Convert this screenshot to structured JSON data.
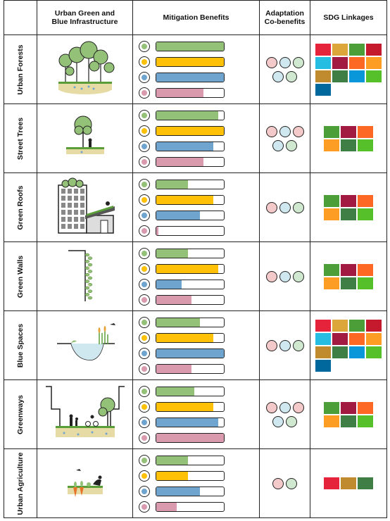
{
  "headers": {
    "row_label": "",
    "infrastructure": "Urban Green and\nBlue Infrastructure",
    "mitigation": "Mitigation Benefits",
    "adaptation": "Adaptation\nCo-benefits",
    "sdg": "SDG Linkages"
  },
  "colors": {
    "bar_green": "#93c178",
    "bar_yellow": "#ffc107",
    "bar_blue": "#6fa4cf",
    "bar_pink": "#d99aae",
    "icon_green": "#93c178",
    "icon_yellow": "#ffc107",
    "icon_blue": "#6fa4cf",
    "icon_pink": "#d99aae",
    "circle_pink": "#f3c9c9",
    "circle_blue": "#cfe7ef",
    "circle_green": "#cfe8cf"
  },
  "benefit_icons": [
    "leaf-icon",
    "sun-icon",
    "water-drops-icon",
    "flower-icon"
  ],
  "sdg_colors": {
    "1": "#e5243b",
    "2": "#dda63a",
    "3": "#4c9f38",
    "4": "#c5192d",
    "6": "#26bde2",
    "8": "#a21942",
    "9": "#fd6925",
    "11": "#fd9d24",
    "12": "#bf8b2e",
    "13": "#3f7e44",
    "14": "#0a97d9",
    "15": "#56c02b",
    "16": "#00689d"
  },
  "rows": [
    {
      "label": "Urban Forests",
      "illustration": "forest-illustration",
      "bars": [
        1.0,
        1.0,
        1.0,
        0.7
      ],
      "adaptation": [
        "pink",
        "blue",
        "green",
        "blue",
        "green"
      ],
      "sdg": [
        "1",
        "2",
        "3",
        "4",
        "6",
        "8",
        "9",
        "11",
        "12",
        "13",
        "14",
        "15",
        "16"
      ]
    },
    {
      "label": "Street Trees",
      "illustration": "street-tree-illustration",
      "bars": [
        0.92,
        1.0,
        0.84,
        0.7
      ],
      "adaptation": [
        "pink",
        "blue",
        "pink",
        "blue",
        "green"
      ],
      "sdg": [
        "3",
        "8",
        "9",
        "11",
        "13",
        "15"
      ]
    },
    {
      "label": "Green Roofs",
      "illustration": "green-roof-illustration",
      "bars": [
        0.47,
        0.84,
        0.65,
        0.03
      ],
      "adaptation": [
        "pink",
        "blue",
        "green"
      ],
      "sdg": [
        "3",
        "8",
        "9",
        "11",
        "13",
        "15"
      ]
    },
    {
      "label": "Green Walls",
      "illustration": "green-wall-illustration",
      "bars": [
        0.47,
        0.92,
        0.38,
        0.52
      ],
      "adaptation": [
        "pink",
        "blue",
        "green"
      ],
      "sdg": [
        "3",
        "8",
        "9",
        "11",
        "13",
        "15"
      ]
    },
    {
      "label": "Blue Spaces",
      "illustration": "blue-space-illustration",
      "bars": [
        0.65,
        0.84,
        1.0,
        0.52
      ],
      "adaptation": [
        "pink",
        "blue",
        "green"
      ],
      "sdg": [
        "1",
        "2",
        "3",
        "4",
        "6",
        "8",
        "9",
        "11",
        "12",
        "13",
        "14",
        "15",
        "16"
      ]
    },
    {
      "label": "Greenways",
      "illustration": "greenway-illustration",
      "bars": [
        0.56,
        0.84,
        0.92,
        1.0
      ],
      "adaptation": [
        "pink",
        "blue",
        "pink",
        "blue",
        "green"
      ],
      "sdg": [
        "3",
        "8",
        "9",
        "11",
        "13",
        "15"
      ]
    },
    {
      "label": "Urban Agriculture",
      "illustration": "urban-agriculture-illustration",
      "bars": [
        0.47,
        0.47,
        0.65,
        0.3
      ],
      "adaptation": [
        "pink",
        "green"
      ],
      "sdg": [
        "1",
        "12",
        "13"
      ]
    }
  ]
}
